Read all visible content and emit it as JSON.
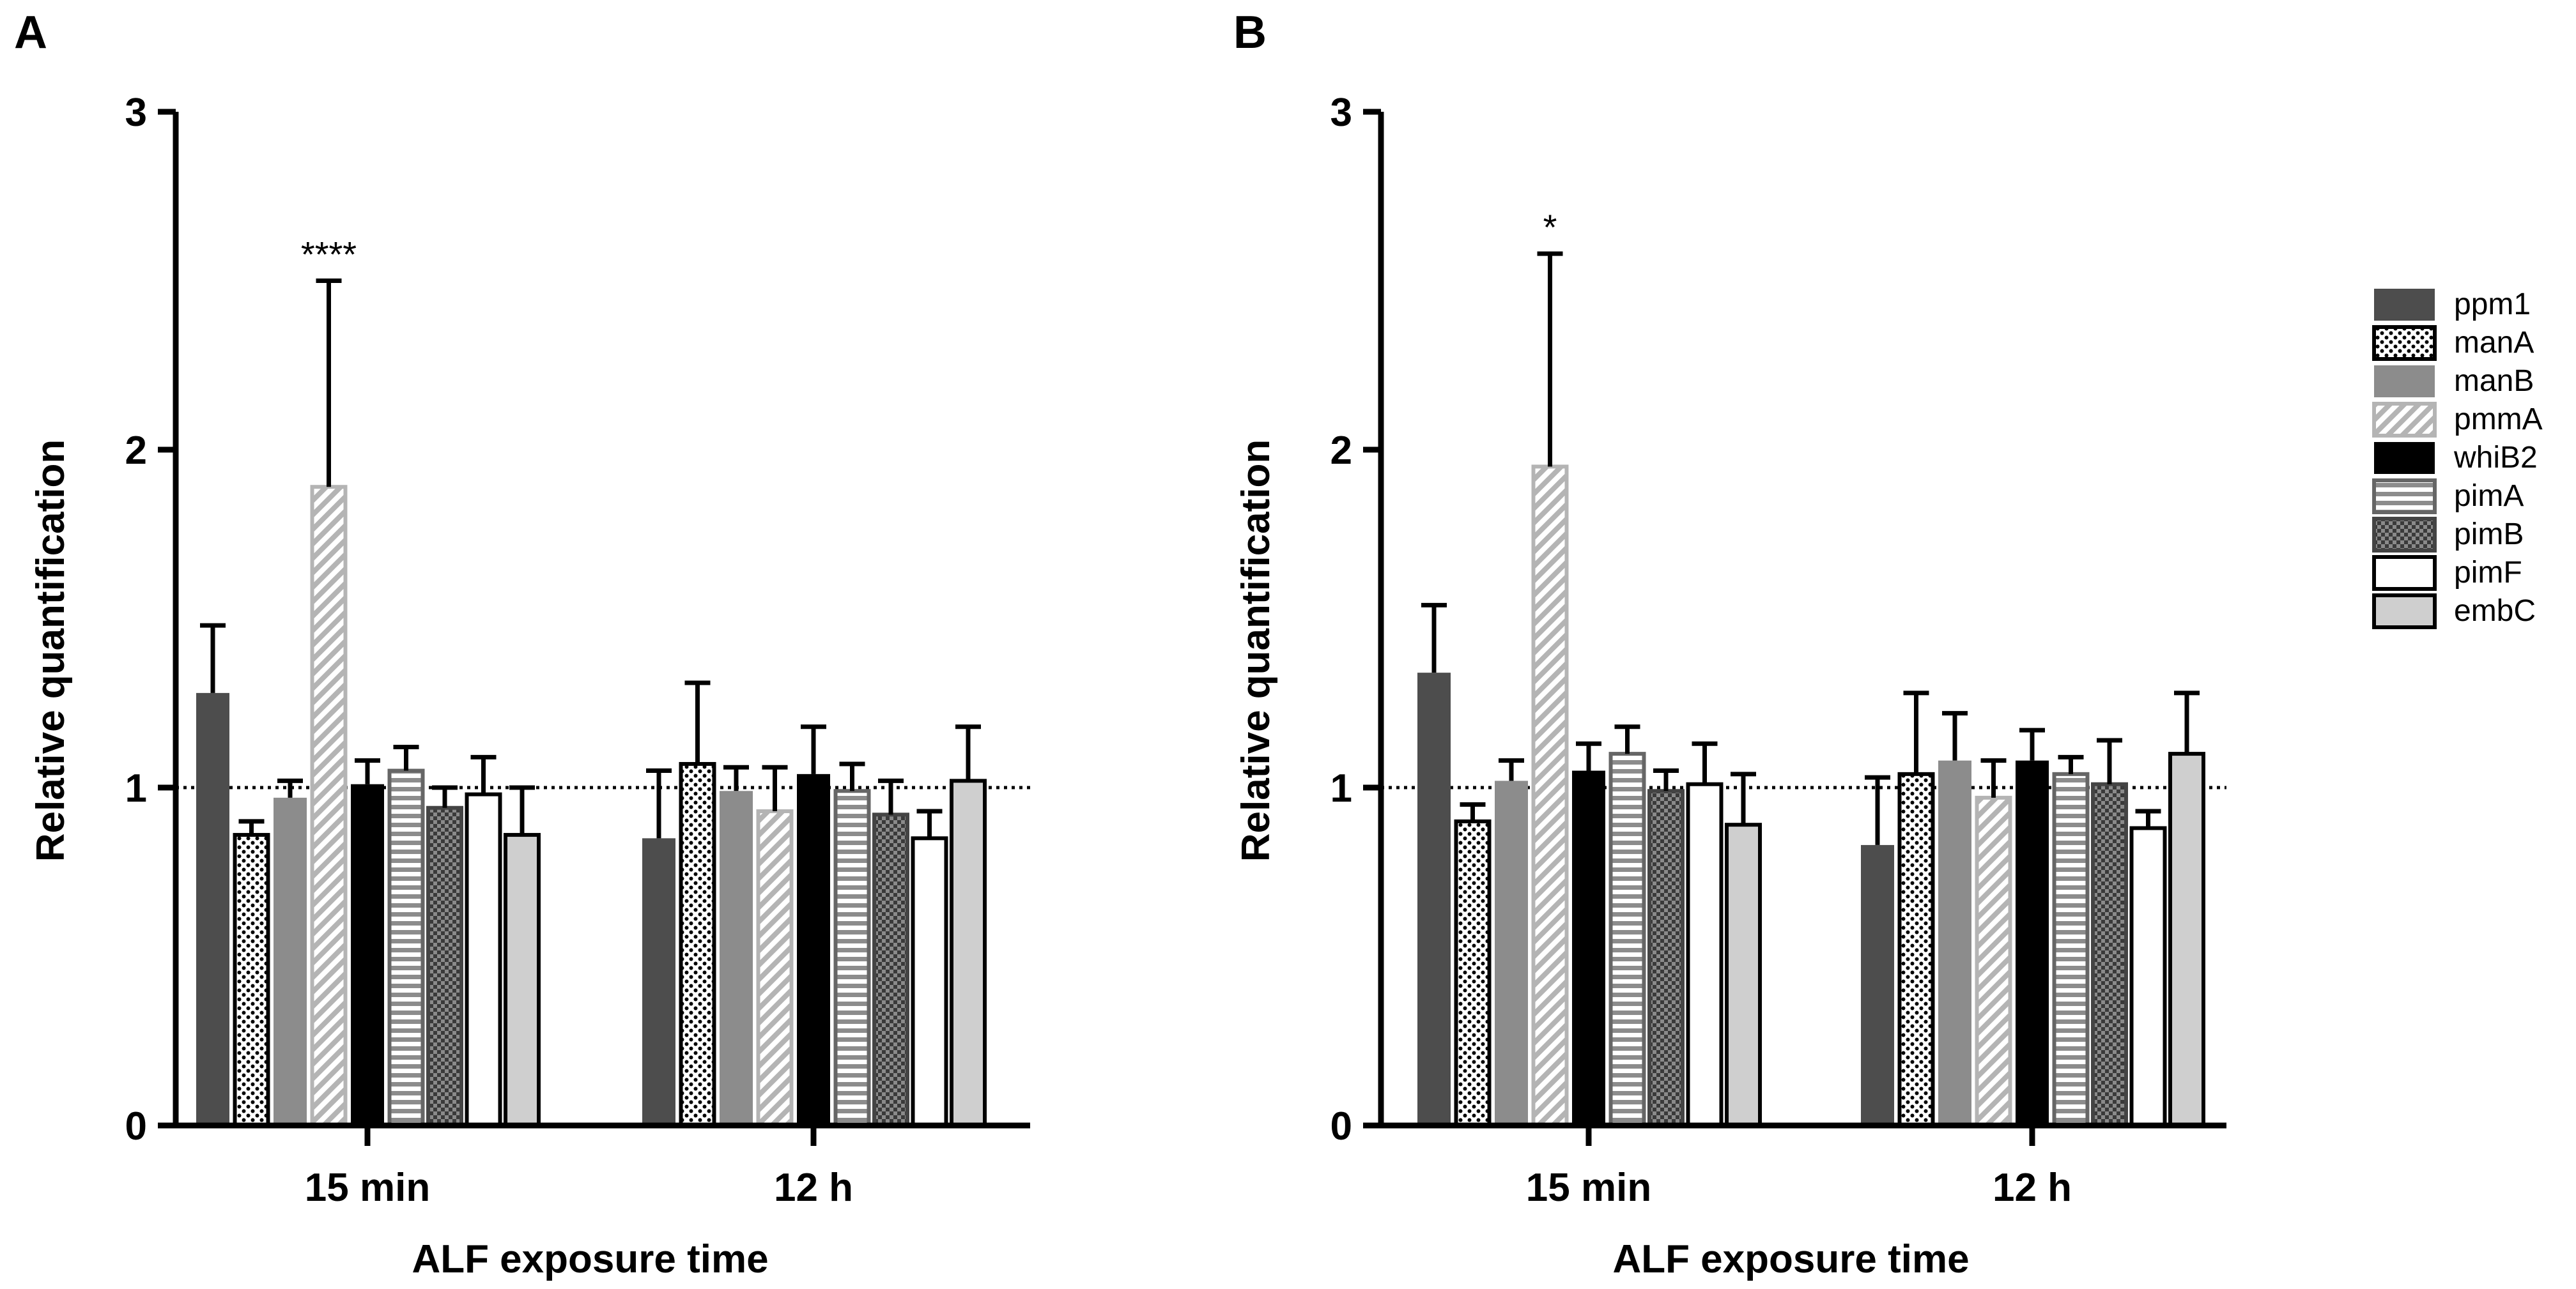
{
  "chart_data": [
    {
      "type": "bar",
      "panel": "A",
      "categories": [
        "15 min",
        "12 h"
      ],
      "xlabel": "ALF exposure time",
      "ylabel": "Relative quantification",
      "ylim": [
        0,
        3
      ],
      "yticks": [
        "0",
        "1",
        "2",
        "3"
      ],
      "reference_line": 1,
      "series": [
        {
          "name": "ppm1",
          "values": [
            1.28,
            0.85
          ],
          "errors": [
            0.2,
            0.2
          ]
        },
        {
          "name": "manA",
          "values": [
            0.86,
            1.07
          ],
          "errors": [
            0.04,
            0.24
          ]
        },
        {
          "name": "manB",
          "values": [
            0.97,
            0.99
          ],
          "errors": [
            0.05,
            0.07
          ]
        },
        {
          "name": "pmmA",
          "values": [
            1.89,
            0.93
          ],
          "errors": [
            0.61,
            0.13
          ]
        },
        {
          "name": "whiB2",
          "values": [
            1.01,
            1.04
          ],
          "errors": [
            0.07,
            0.14
          ]
        },
        {
          "name": "pimA",
          "values": [
            1.05,
            0.99
          ],
          "errors": [
            0.07,
            0.08
          ]
        },
        {
          "name": "pimB",
          "values": [
            0.94,
            0.92
          ],
          "errors": [
            0.06,
            0.1
          ]
        },
        {
          "name": "pimF",
          "values": [
            0.98,
            0.85
          ],
          "errors": [
            0.11,
            0.08
          ]
        },
        {
          "name": "embC",
          "values": [
            0.86,
            1.02
          ],
          "errors": [
            0.14,
            0.16
          ]
        }
      ],
      "annotations": [
        {
          "series": "pmmA",
          "category": "15 min",
          "text": "****"
        }
      ]
    },
    {
      "type": "bar",
      "panel": "B",
      "categories": [
        "15 min",
        "12 h"
      ],
      "xlabel": "ALF exposure time",
      "ylabel": "Relative quantification",
      "ylim": [
        0,
        3
      ],
      "yticks": [
        "0",
        "1",
        "2",
        "3"
      ],
      "reference_line": 1,
      "series": [
        {
          "name": "ppm1",
          "values": [
            1.34,
            0.83
          ],
          "errors": [
            0.2,
            0.2
          ]
        },
        {
          "name": "manA",
          "values": [
            0.9,
            1.04
          ],
          "errors": [
            0.05,
            0.24
          ]
        },
        {
          "name": "manB",
          "values": [
            1.02,
            1.08
          ],
          "errors": [
            0.06,
            0.14
          ]
        },
        {
          "name": "pmmA",
          "values": [
            1.95,
            0.97
          ],
          "errors": [
            0.63,
            0.11
          ]
        },
        {
          "name": "whiB2",
          "values": [
            1.05,
            1.08
          ],
          "errors": [
            0.08,
            0.09
          ]
        },
        {
          "name": "pimA",
          "values": [
            1.1,
            1.04
          ],
          "errors": [
            0.08,
            0.05
          ]
        },
        {
          "name": "pimB",
          "values": [
            0.99,
            1.01
          ],
          "errors": [
            0.06,
            0.13
          ]
        },
        {
          "name": "pimF",
          "values": [
            1.01,
            0.88
          ],
          "errors": [
            0.12,
            0.05
          ]
        },
        {
          "name": "embC",
          "values": [
            0.89,
            1.1
          ],
          "errors": [
            0.15,
            0.18
          ]
        }
      ],
      "annotations": [
        {
          "series": "pmmA",
          "category": "15 min",
          "text": "*"
        }
      ]
    }
  ],
  "legend": {
    "items": [
      {
        "name": "ppm1",
        "pattern": "solid-dark"
      },
      {
        "name": "manA",
        "pattern": "dots"
      },
      {
        "name": "manB",
        "pattern": "solid-mid"
      },
      {
        "name": "pmmA",
        "pattern": "diagonal"
      },
      {
        "name": "whiB2",
        "pattern": "solid-black"
      },
      {
        "name": "pimA",
        "pattern": "horizontal"
      },
      {
        "name": "pimB",
        "pattern": "checker"
      },
      {
        "name": "pimF",
        "pattern": "white"
      },
      {
        "name": "embC",
        "pattern": "solid-light"
      }
    ]
  },
  "colors": {
    "ppm1": "#4d4d4d",
    "manB": "#8c8c8c",
    "pmmA_stripe": "#b4b4b4",
    "whiB2": "#000000",
    "pimA_stripe": "#8c8c8c",
    "pimB": "#555555",
    "embC": "#cfcfcf",
    "axis": "#000000"
  }
}
